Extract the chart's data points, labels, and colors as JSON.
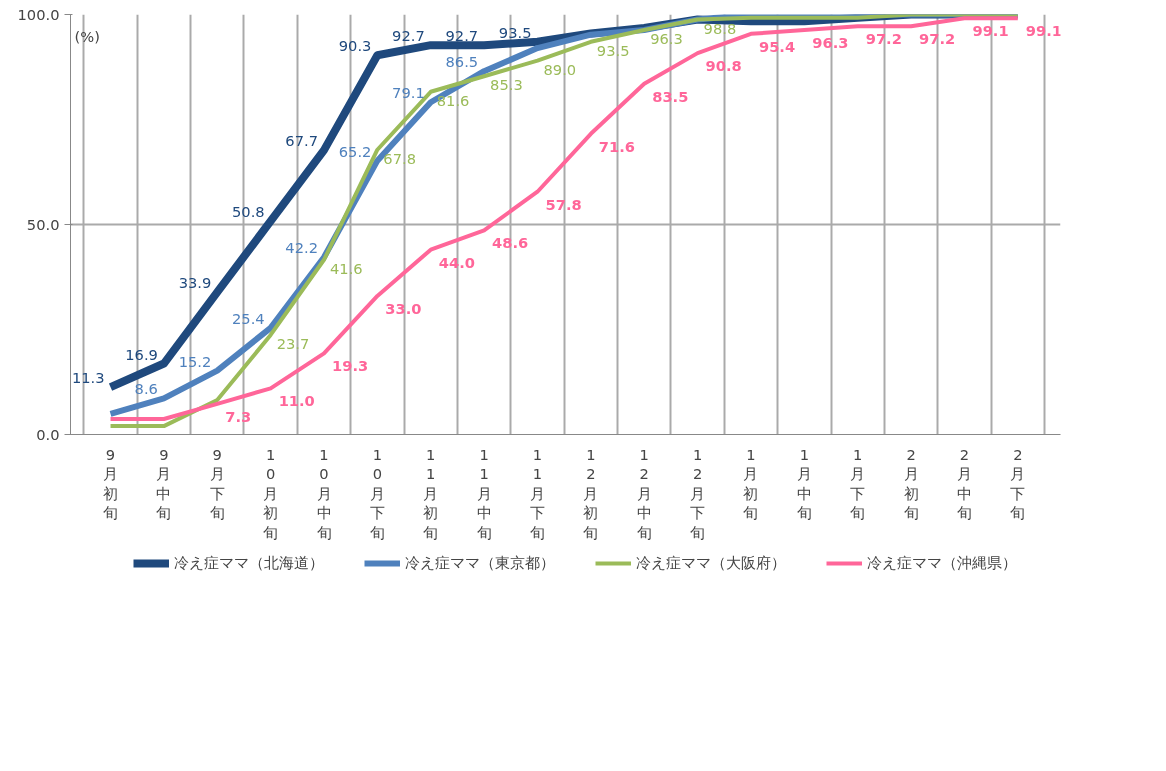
{
  "chart_data": {
    "type": "line",
    "ylabel": "(%)",
    "categories": [
      "9月初旬",
      "9月中旬",
      "9月下旬",
      "10月初旬",
      "10月中旬",
      "10月下旬",
      "11月初旬",
      "11月中旬",
      "11月下旬",
      "12月初旬",
      "12月中旬",
      "12月下旬",
      "1月初旬",
      "1月中旬",
      "1月下旬",
      "2月初旬",
      "2月中旬",
      "2月下旬"
    ],
    "series": [
      {
        "name": "冷え症ママ（北海道）",
        "color": "#1f497d",
        "values": [
          11.3,
          16.9,
          33.9,
          50.8,
          67.7,
          90.3,
          92.7,
          92.7,
          93.5,
          95.5,
          96.8,
          98.8,
          98.4,
          98.4,
          99.2,
          100.0,
          100.0,
          100.0
        ],
        "value_labels": [
          "11.3",
          "16.9",
          "33.9",
          "50.8",
          "67.7",
          "90.3",
          "92.7",
          "92.7",
          "93.5",
          null,
          null,
          null,
          null,
          null,
          null,
          null,
          null,
          null
        ]
      },
      {
        "name": "冷え症ママ（東京都）",
        "color": "#4f81bd",
        "values": [
          4.9,
          8.6,
          15.2,
          25.4,
          42.2,
          65.2,
          79.1,
          86.5,
          92.0,
          95.2,
          96.3,
          98.8,
          100.0,
          100.0,
          100.0,
          100.0,
          100.0,
          100.0
        ],
        "value_labels": [
          null,
          "8.6",
          "15.2",
          "25.4",
          "42.2",
          "65.2",
          "79.1",
          "86.5",
          null,
          null,
          null,
          null,
          null,
          null,
          null,
          null,
          null,
          null
        ]
      },
      {
        "name": "冷え症ママ（大阪府）",
        "color": "#9bbb59",
        "values": [
          2.0,
          2.0,
          8.2,
          23.7,
          41.6,
          67.8,
          81.6,
          85.3,
          89.0,
          93.5,
          96.3,
          98.8,
          99.2,
          99.2,
          99.2,
          100.0,
          100.0,
          100.0
        ],
        "value_labels": [
          null,
          null,
          null,
          "23.7",
          "41.6",
          "67.8",
          "81.6",
          "85.3",
          "89.0",
          "93.5",
          "96.3",
          "98.8",
          null,
          null,
          null,
          null,
          null,
          null
        ]
      },
      {
        "name": "冷え症ママ（沖縄県）",
        "color": "#ff6699",
        "values": [
          3.7,
          3.7,
          7.3,
          11.0,
          19.3,
          33.0,
          44.0,
          48.6,
          57.8,
          71.6,
          83.5,
          90.8,
          95.4,
          96.3,
          97.2,
          97.2,
          99.1,
          99.1
        ],
        "value_labels": [
          null,
          null,
          "7.3",
          "11.0",
          "19.3",
          "33.0",
          "44.0",
          "48.6",
          "57.8",
          "71.6",
          "83.5",
          "90.8",
          "95.4",
          "96.3",
          "97.2",
          "97.2",
          "99.1",
          "99.1"
        ]
      }
    ],
    "ylim": [
      0,
      100
    ],
    "yticks": [
      {
        "value": 0,
        "label": "0.0"
      },
      {
        "value": 50,
        "label": "50.0"
      },
      {
        "value": 100,
        "label": "100.0"
      }
    ],
    "grid": true,
    "data_labels": true,
    "legend": "bottom",
    "marker": "none",
    "line_style": "solid"
  }
}
